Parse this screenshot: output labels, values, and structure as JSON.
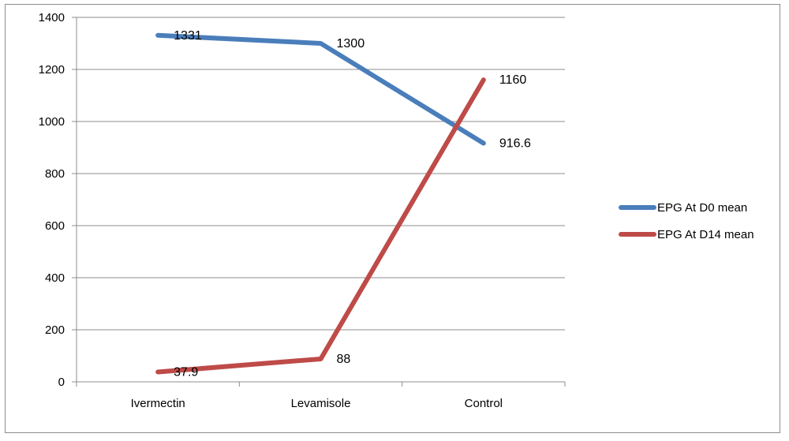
{
  "chart_data": {
    "type": "line",
    "categories": [
      "Ivermectin",
      "Levamisole",
      "Control"
    ],
    "series": [
      {
        "name": "EPG At D0 mean",
        "values": [
          1331,
          1300,
          916.6
        ],
        "labels": [
          "1331",
          "1300",
          "916.6"
        ],
        "color": "#4a7ebb"
      },
      {
        "name": "EPG At D14 mean",
        "values": [
          37.9,
          88,
          1160
        ],
        "labels": [
          "37.9",
          "88",
          "1160"
        ],
        "color": "#be4b48"
      }
    ],
    "ylim": [
      0,
      1400
    ],
    "yticks": [
      "0",
      "200",
      "400",
      "600",
      "800",
      "1000",
      "1200",
      "1400"
    ],
    "grid": true,
    "legend_position": "right"
  }
}
